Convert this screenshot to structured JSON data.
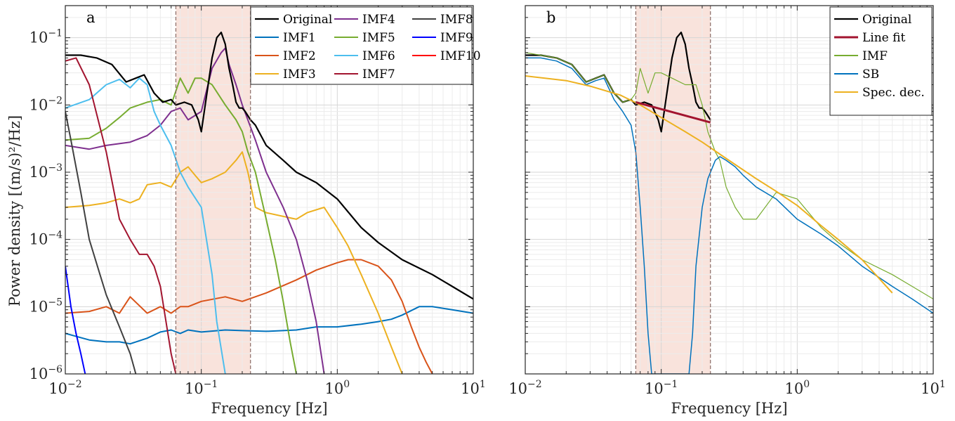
{
  "figure": {
    "ylabel": "Power density [(m/s)²/Hz]",
    "xlabel": "Frequency [Hz]"
  },
  "chart_data": [
    {
      "type": "line",
      "panel_label": "a",
      "xscale": "log",
      "yscale": "log",
      "xlim": [
        0.01,
        10
      ],
      "ylim": [
        1e-06,
        0.3
      ],
      "xlabel": "Frequency [Hz]",
      "ylabel": "Power density [(m/s)²/Hz]",
      "xticks": [
        {
          "base": "10",
          "exp": "−2",
          "value": 0.01
        },
        {
          "base": "10",
          "exp": "−1",
          "value": 0.1
        },
        {
          "base": "10",
          "exp": "0",
          "value": 1
        },
        {
          "base": "10",
          "exp": "1",
          "value": 10
        }
      ],
      "yticks": [
        {
          "base": "10",
          "exp": "−6",
          "value": 1e-06
        },
        {
          "base": "10",
          "exp": "−5",
          "value": 1e-05
        },
        {
          "base": "10",
          "exp": "−4",
          "value": 0.0001
        },
        {
          "base": "10",
          "exp": "−3",
          "value": 0.001
        },
        {
          "base": "10",
          "exp": "−2",
          "value": 0.01
        },
        {
          "base": "10",
          "exp": "−1",
          "value": 0.1
        }
      ],
      "grid": true,
      "legend": {
        "placement": "top-right",
        "columns": 3
      },
      "shaded_band": {
        "x": [
          0.065,
          0.23
        ],
        "color": "#f9e3dc"
      },
      "series": [
        {
          "name": "Original",
          "color": "#000000",
          "width": 2.2,
          "x": [
            0.01,
            0.013,
            0.017,
            0.022,
            0.028,
            0.033,
            0.038,
            0.045,
            0.052,
            0.06,
            0.065,
            0.075,
            0.085,
            0.095,
            0.1,
            0.11,
            0.12,
            0.13,
            0.14,
            0.15,
            0.16,
            0.17,
            0.18,
            0.19,
            0.2,
            0.21,
            0.23,
            0.25,
            0.3,
            0.4,
            0.5,
            0.7,
            1,
            1.5,
            2,
            3,
            5,
            7,
            10
          ],
          "y": [
            0.055,
            0.055,
            0.05,
            0.04,
            0.022,
            0.025,
            0.028,
            0.015,
            0.011,
            0.012,
            0.01,
            0.011,
            0.01,
            0.006,
            0.004,
            0.015,
            0.05,
            0.1,
            0.12,
            0.08,
            0.035,
            0.02,
            0.011,
            0.009,
            0.009,
            0.008,
            0.006,
            0.005,
            0.0025,
            0.0015,
            0.001,
            0.0007,
            0.0004,
            0.00015,
            9e-05,
            5e-05,
            3e-05,
            2e-05,
            1.3e-05
          ]
        },
        {
          "name": "IMF1",
          "color": "#0072bd",
          "width": 2,
          "x": [
            0.01,
            0.015,
            0.02,
            0.025,
            0.03,
            0.04,
            0.05,
            0.06,
            0.07,
            0.08,
            0.1,
            0.15,
            0.2,
            0.3,
            0.5,
            0.7,
            1,
            1.5,
            2,
            2.5,
            3,
            4,
            5,
            7,
            10
          ],
          "y": [
            4e-06,
            3.2e-06,
            3e-06,
            3e-06,
            2.8e-06,
            3.4e-06,
            4.2e-06,
            4.5e-06,
            4e-06,
            4.5e-06,
            4.2e-06,
            4.5e-06,
            4.4e-06,
            4.3e-06,
            4.5e-06,
            5e-06,
            5e-06,
            5.5e-06,
            6e-06,
            6.5e-06,
            7.5e-06,
            1e-05,
            1e-05,
            9e-06,
            8e-06
          ]
        },
        {
          "name": "IMF2",
          "color": "#d95319",
          "width": 2,
          "x": [
            0.01,
            0.015,
            0.02,
            0.025,
            0.03,
            0.04,
            0.05,
            0.06,
            0.07,
            0.08,
            0.1,
            0.15,
            0.2,
            0.3,
            0.5,
            0.7,
            1,
            1.2,
            1.5,
            2,
            2.5,
            3,
            3.5,
            4,
            4.5,
            5
          ],
          "y": [
            8e-06,
            8.5e-06,
            1e-05,
            8e-06,
            1.4e-05,
            8e-06,
            1e-05,
            8e-06,
            1e-05,
            1e-05,
            1.2e-05,
            1.4e-05,
            1.2e-05,
            1.6e-05,
            2.5e-05,
            3.5e-05,
            4.5e-05,
            5e-05,
            5e-05,
            4e-05,
            2.5e-05,
            1.2e-05,
            5e-06,
            2.5e-06,
            1.5e-06,
            1e-06
          ]
        },
        {
          "name": "IMF3",
          "color": "#edb120",
          "width": 2,
          "x": [
            0.01,
            0.015,
            0.02,
            0.025,
            0.03,
            0.035,
            0.04,
            0.05,
            0.06,
            0.07,
            0.08,
            0.09,
            0.1,
            0.12,
            0.15,
            0.18,
            0.2,
            0.22,
            0.25,
            0.3,
            0.4,
            0.5,
            0.6,
            0.8,
            1,
            1.2,
            1.5,
            2,
            2.5,
            3
          ],
          "y": [
            0.0003,
            0.00032,
            0.00035,
            0.0004,
            0.00035,
            0.0004,
            0.00065,
            0.0007,
            0.0006,
            0.001,
            0.0012,
            0.0009,
            0.0007,
            0.0008,
            0.001,
            0.0015,
            0.002,
            0.001,
            0.0003,
            0.00025,
            0.00022,
            0.0002,
            0.00025,
            0.0003,
            0.00015,
            8e-05,
            3e-05,
            8e-06,
            2.5e-06,
            1e-06
          ]
        },
        {
          "name": "IMF4",
          "color": "#7e2f8e",
          "width": 2,
          "x": [
            0.01,
            0.015,
            0.02,
            0.03,
            0.04,
            0.05,
            0.06,
            0.07,
            0.08,
            0.1,
            0.12,
            0.14,
            0.15,
            0.16,
            0.18,
            0.2,
            0.25,
            0.3,
            0.4,
            0.5,
            0.6,
            0.7,
            0.8
          ],
          "y": [
            0.0025,
            0.0022,
            0.0025,
            0.0028,
            0.0035,
            0.005,
            0.008,
            0.009,
            0.006,
            0.008,
            0.035,
            0.06,
            0.07,
            0.04,
            0.02,
            0.01,
            0.003,
            0.001,
            0.0003,
            0.0001,
            2.5e-05,
            6e-06,
            1e-06
          ]
        },
        {
          "name": "IMF5",
          "color": "#77ac30",
          "width": 2,
          "x": [
            0.01,
            0.015,
            0.02,
            0.025,
            0.03,
            0.04,
            0.05,
            0.06,
            0.07,
            0.08,
            0.09,
            0.1,
            0.12,
            0.15,
            0.18,
            0.2,
            0.22,
            0.25,
            0.3,
            0.35,
            0.4,
            0.45,
            0.5
          ],
          "y": [
            0.003,
            0.0032,
            0.0045,
            0.0065,
            0.009,
            0.011,
            0.012,
            0.01,
            0.025,
            0.015,
            0.025,
            0.025,
            0.02,
            0.01,
            0.006,
            0.004,
            0.002,
            0.001,
            0.0002,
            5e-05,
            1.2e-05,
            3e-06,
            1e-06
          ]
        },
        {
          "name": "IMF6",
          "color": "#4dbeee",
          "width": 2,
          "x": [
            0.01,
            0.015,
            0.02,
            0.025,
            0.03,
            0.035,
            0.04,
            0.045,
            0.05,
            0.06,
            0.07,
            0.08,
            0.1,
            0.12,
            0.13,
            0.15
          ],
          "y": [
            0.009,
            0.012,
            0.02,
            0.024,
            0.018,
            0.025,
            0.02,
            0.008,
            0.005,
            0.0025,
            0.001,
            0.0006,
            0.0003,
            3e-05,
            6e-06,
            1e-06
          ]
        },
        {
          "name": "IMF7",
          "color": "#a2142f",
          "width": 2,
          "x": [
            0.01,
            0.012,
            0.015,
            0.02,
            0.025,
            0.03,
            0.035,
            0.04,
            0.045,
            0.05,
            0.055,
            0.06,
            0.065
          ],
          "y": [
            0.045,
            0.05,
            0.02,
            0.002,
            0.0002,
            0.0001,
            6e-05,
            6e-05,
            4e-05,
            2e-05,
            6e-06,
            2e-06,
            1e-06
          ]
        },
        {
          "name": "IMF8",
          "color": "#404040",
          "width": 2,
          "x": [
            0.01,
            0.011,
            0.013,
            0.015,
            0.018,
            0.02,
            0.025,
            0.03,
            0.033
          ],
          "y": [
            0.008,
            0.003,
            0.0005,
            0.0001,
            3e-05,
            1.5e-05,
            5e-06,
            2e-06,
            1e-06
          ]
        },
        {
          "name": "IMF9",
          "color": "#0000ff",
          "width": 2,
          "x": [
            0.01,
            0.011,
            0.012,
            0.013,
            0.014
          ],
          "y": [
            4e-05,
            1e-05,
            4e-06,
            2e-06,
            1e-06
          ]
        },
        {
          "name": "IMF10",
          "color": "#ff0000",
          "width": 2,
          "x": [],
          "y": []
        }
      ]
    },
    {
      "type": "line",
      "panel_label": "b",
      "xscale": "log",
      "yscale": "log",
      "xlim": [
        0.01,
        10
      ],
      "ylim": [
        1e-06,
        0.3
      ],
      "xlabel": "Frequency [Hz]",
      "xticks": [
        {
          "base": "10",
          "exp": "−2",
          "value": 0.01
        },
        {
          "base": "10",
          "exp": "−1",
          "value": 0.1
        },
        {
          "base": "10",
          "exp": "0",
          "value": 1
        },
        {
          "base": "10",
          "exp": "1",
          "value": 10
        }
      ],
      "grid": true,
      "legend": {
        "placement": "top-right",
        "columns": 1
      },
      "shaded_band": {
        "x": [
          0.065,
          0.23
        ],
        "color": "#f9e3dc"
      },
      "series": [
        {
          "name": "Original",
          "color": "#000000",
          "width": 2.2,
          "x": [
            0.01,
            0.013,
            0.017,
            0.022,
            0.028,
            0.033,
            0.038,
            0.045,
            0.052,
            0.06,
            0.065,
            0.075,
            0.085,
            0.095,
            0.1,
            0.11,
            0.12,
            0.13,
            0.14,
            0.15,
            0.16,
            0.17,
            0.18,
            0.19,
            0.2,
            0.21,
            0.23
          ],
          "y": [
            0.055,
            0.055,
            0.05,
            0.04,
            0.022,
            0.025,
            0.028,
            0.015,
            0.011,
            0.012,
            0.01,
            0.011,
            0.01,
            0.006,
            0.004,
            0.015,
            0.05,
            0.1,
            0.12,
            0.08,
            0.035,
            0.02,
            0.011,
            0.009,
            0.009,
            0.008,
            0.006
          ]
        },
        {
          "name": "Line fit",
          "color": "#a2142f",
          "width": 3,
          "x": [
            0.065,
            0.23
          ],
          "y": [
            0.011,
            0.0055
          ]
        },
        {
          "name": "IMF",
          "color": "#77ac30",
          "width": 1.2,
          "x": [
            0.01,
            0.013,
            0.017,
            0.022,
            0.028,
            0.033,
            0.038,
            0.045,
            0.052,
            0.06,
            0.065,
            0.07,
            0.08,
            0.09,
            0.1,
            0.12,
            0.15,
            0.18,
            0.2,
            0.22,
            0.25,
            0.27,
            0.3,
            0.35,
            0.4,
            0.5,
            0.7,
            1,
            1.5,
            2,
            3,
            5,
            7,
            10
          ],
          "y": [
            0.06,
            0.055,
            0.05,
            0.04,
            0.022,
            0.025,
            0.028,
            0.015,
            0.011,
            0.012,
            0.015,
            0.035,
            0.015,
            0.03,
            0.03,
            0.025,
            0.02,
            0.02,
            0.01,
            0.004,
            0.002,
            0.0015,
            0.0006,
            0.0003,
            0.0002,
            0.0002,
            0.0005,
            0.0004,
            0.00015,
            9e-05,
            5e-05,
            3e-05,
            2e-05,
            1.3e-05
          ]
        },
        {
          "name": "SB",
          "color": "#0072bd",
          "width": 1.5,
          "x": [
            0.01,
            0.013,
            0.017,
            0.022,
            0.028,
            0.033,
            0.038,
            0.045,
            0.052,
            0.06,
            0.065,
            0.07,
            0.075,
            0.08,
            0.085,
            0.16,
            0.17,
            0.18,
            0.2,
            0.22,
            0.25,
            0.27,
            0.3,
            0.35,
            0.4,
            0.5,
            0.7,
            1,
            1.5,
            2,
            3,
            5,
            7,
            10
          ],
          "y": [
            0.05,
            0.05,
            0.045,
            0.035,
            0.02,
            0.023,
            0.025,
            0.012,
            0.008,
            0.005,
            0.002,
            0.0003,
            4e-05,
            4e-06,
            1e-06,
            1e-06,
            4e-06,
            4e-05,
            0.0003,
            0.0008,
            0.0015,
            0.0017,
            0.0015,
            0.0012,
            0.0009,
            0.0006,
            0.0004,
            0.0002,
            0.00012,
            8e-05,
            4e-05,
            2e-05,
            1.3e-05,
            8e-06
          ]
        },
        {
          "name": "Spec. dec.",
          "color": "#edb120",
          "width": 2,
          "x": [
            0.01,
            0.02,
            0.03,
            0.05,
            0.07,
            0.1,
            0.15,
            0.2,
            0.3,
            0.5,
            0.7,
            1,
            1.5,
            2,
            3,
            5
          ],
          "y": [
            0.027,
            0.023,
            0.019,
            0.014,
            0.01,
            0.0065,
            0.004,
            0.0028,
            0.0016,
            0.0008,
            0.00052,
            0.00032,
            0.00016,
            0.0001,
            5e-05,
            1.6e-05
          ]
        }
      ]
    }
  ]
}
